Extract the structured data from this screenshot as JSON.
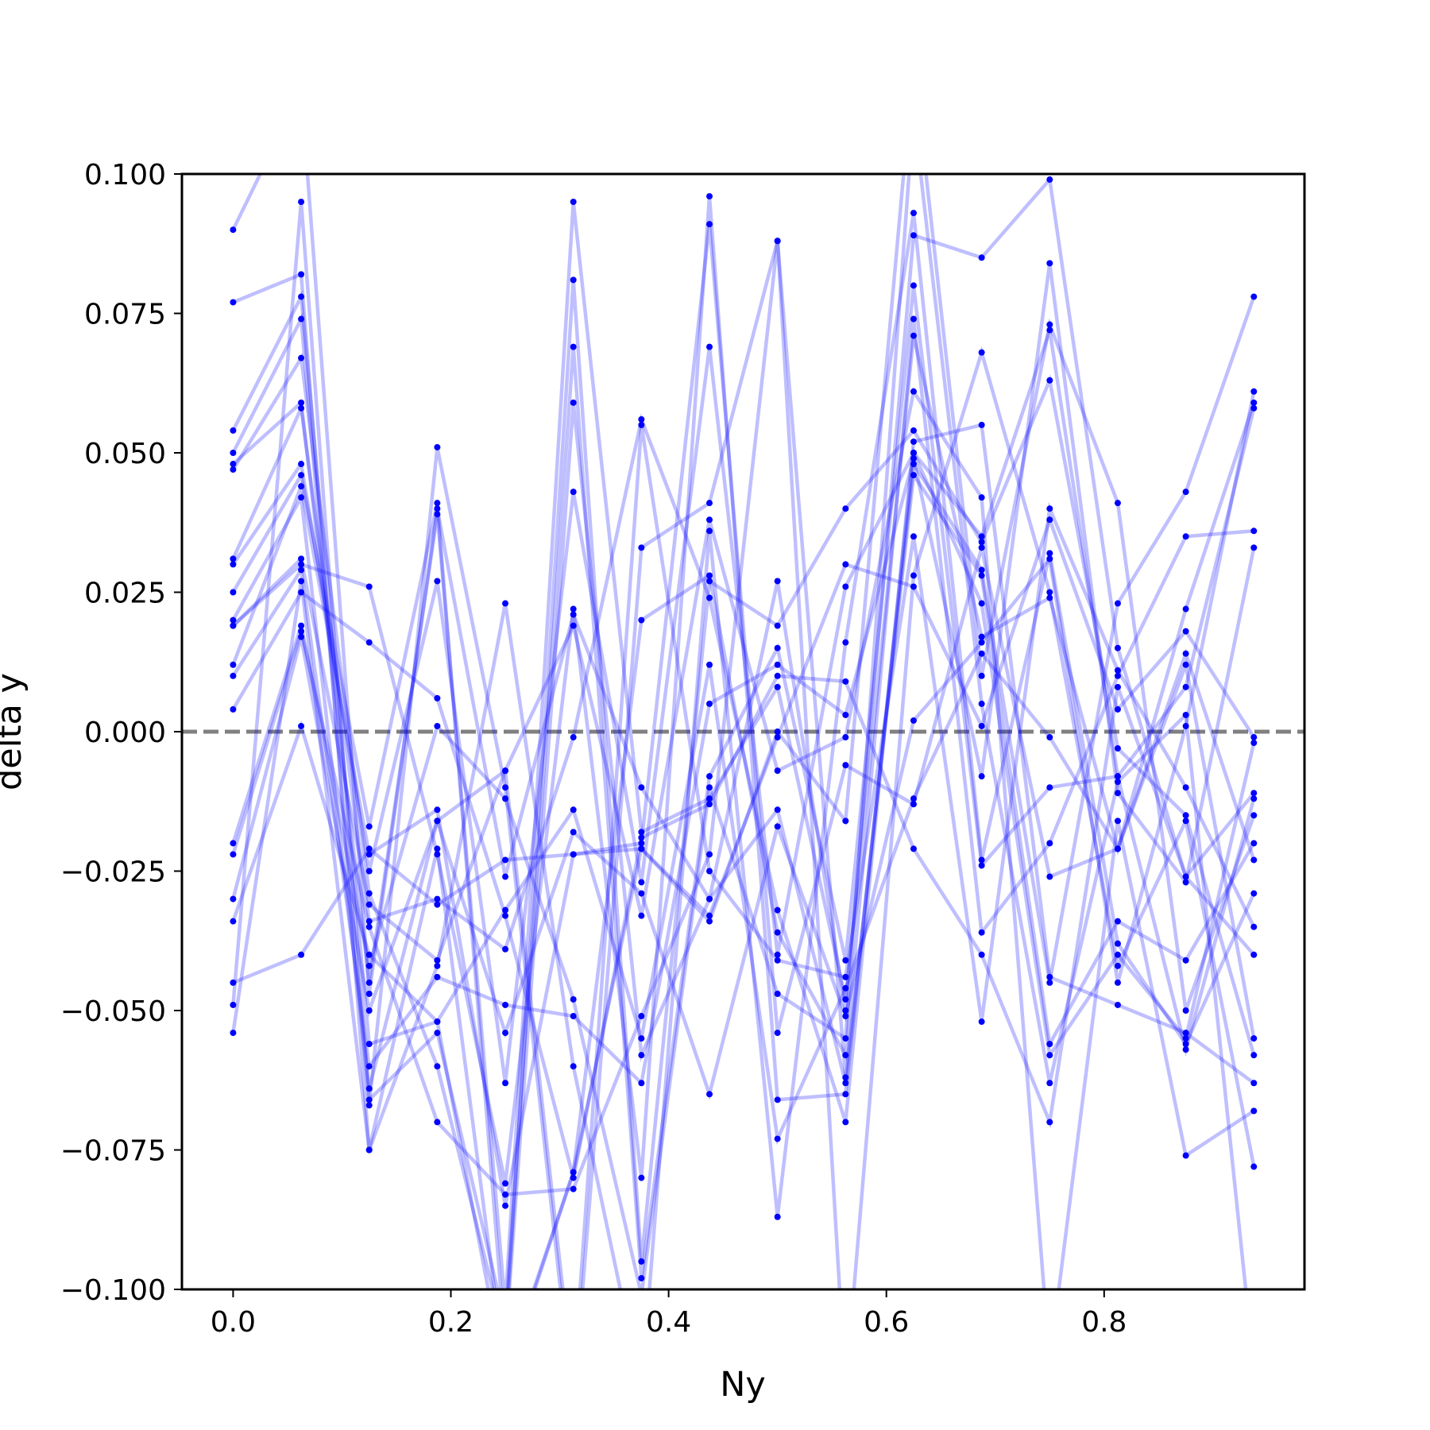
{
  "chart_data": {
    "type": "line",
    "title": "",
    "xlabel": "Ny",
    "ylabel": "delta y",
    "xlim": [
      -0.047,
      0.984
    ],
    "ylim": [
      -0.1,
      0.1
    ],
    "x": [
      0.0,
      0.0625,
      0.125,
      0.1875,
      0.25,
      0.3125,
      0.375,
      0.4375,
      0.5,
      0.5625,
      0.625,
      0.6875,
      0.75,
      0.8125,
      0.875,
      0.9375
    ],
    "xticks": [
      0.0,
      0.2,
      0.4,
      0.6,
      0.8
    ],
    "xtick_labels": [
      "0.0",
      "0.2",
      "0.4",
      "0.6",
      "0.8"
    ],
    "yticks": [
      0.1,
      0.075,
      0.05,
      0.025,
      0.0,
      -0.025,
      -0.05,
      -0.075,
      -0.1
    ],
    "ytick_labels": [
      "0.100",
      "0.075",
      "0.050",
      "0.025",
      "0.000",
      "−0.025",
      "−0.050",
      "−0.075",
      "−0.100"
    ],
    "reference_line": {
      "y": 0.0,
      "style": "dashed",
      "color": "#808080"
    },
    "grid": false,
    "line_color": "#0000ff",
    "series": [
      {
        "values": [
          0.09,
          0.115,
          -0.047,
          0.04,
          -0.026,
          0.021,
          -0.01,
          -0.03,
          0.027,
          -0.05,
          0.089,
          0.085,
          0.099,
          0.015,
          -0.026,
          -0.011
        ]
      },
      {
        "values": [
          0.077,
          0.082,
          -0.075,
          -0.042,
          0.023,
          -0.06,
          -0.118,
          0.036,
          -0.087,
          0.016,
          0.093,
          -0.023,
          0.032,
          -0.038,
          -0.056,
          -0.029
        ]
      },
      {
        "values": [
          0.054,
          0.078,
          -0.056,
          -0.052,
          -0.116,
          -0.079,
          0.02,
          0.028,
          -0.036,
          -0.058,
          0.074,
          -0.036,
          -0.02,
          0.01,
          0.035,
          0.036
        ]
      },
      {
        "values": [
          0.05,
          0.074,
          -0.067,
          0.051,
          -0.01,
          -0.121,
          0.033,
          0.041,
          0.088,
          -0.062,
          0.046,
          0.028,
          -0.056,
          -0.034,
          -0.041,
          -0.02
        ]
      },
      {
        "values": [
          0.047,
          0.067,
          -0.029,
          -0.06,
          -0.109,
          0.081,
          -0.095,
          0.027,
          0.019,
          0.04,
          0.054,
          0.034,
          0.063,
          -0.003,
          -0.015,
          -0.058
        ]
      },
      {
        "values": [
          0.048,
          0.059,
          -0.045,
          0.039,
          -0.103,
          0.095,
          -0.018,
          -0.012,
          0.008,
          -0.048,
          0.071,
          0.017,
          0.024,
          -0.021,
          0.022,
          0.059
        ]
      },
      {
        "values": [
          0.031,
          0.058,
          -0.034,
          -0.03,
          -0.039,
          -0.001,
          0.056,
          0.024,
          -0.032,
          -0.07,
          0.052,
          0.055,
          -0.044,
          -0.049,
          -0.054,
          -0.063
        ]
      },
      {
        "values": [
          0.03,
          0.048,
          -0.025,
          0.027,
          -0.063,
          0.043,
          -0.027,
          0.069,
          -0.04,
          0.026,
          0.05,
          0.035,
          0.072,
          -0.008,
          -0.057,
          -0.012
        ]
      },
      {
        "values": [
          0.025,
          0.046,
          -0.017,
          0.041,
          -0.11,
          0.059,
          -0.058,
          -0.03,
          -0.014,
          -0.063,
          0.048,
          0.029,
          -0.045,
          0.023,
          0.043,
          0.078
        ]
      },
      {
        "values": [
          0.02,
          0.042,
          -0.064,
          -0.016,
          -0.007,
          -0.117,
          0.055,
          -0.025,
          -0.041,
          -0.044,
          0.035,
          -0.052,
          0.04,
          0.011,
          -0.01,
          -0.035
        ]
      },
      {
        "values": [
          0.019,
          0.03,
          0.026,
          -0.022,
          -0.081,
          0.022,
          -0.08,
          0.096,
          -0.066,
          -0.065,
          0.05,
          0.023,
          -0.058,
          -0.04,
          -0.055,
          -0.002
        ]
      },
      {
        "values": [
          0.019,
          0.031,
          -0.031,
          -0.041,
          -0.007,
          0.019,
          -0.033,
          0.038,
          -0.007,
          -0.001,
          0.061,
          0.042,
          -0.113,
          -0.016,
          -0.076,
          -0.068
        ]
      },
      {
        "values": [
          0.012,
          0.044,
          -0.022,
          -0.014,
          -0.085,
          -0.022,
          -0.02,
          0.091,
          -0.054,
          -0.006,
          -0.013,
          0.033,
          -0.026,
          -0.021,
          0.014,
          -0.023
        ]
      },
      {
        "values": [
          0.01,
          0.029,
          -0.06,
          -0.044,
          -0.049,
          -0.051,
          -0.063,
          0.005,
          0.012,
          0.003,
          0.049,
          -0.008,
          0.084,
          -0.011,
          -0.027,
          0.033
        ]
      },
      {
        "values": [
          0.004,
          0.025,
          0.016,
          0.006,
          -0.033,
          -0.08,
          -0.019,
          -0.013,
          0.01,
          0.009,
          -0.021,
          -0.04,
          -0.07,
          0.008,
          -0.026,
          -0.04
        ]
      },
      {
        "values": [
          -0.02,
          0.019,
          -0.042,
          0.001,
          -0.012,
          -0.048,
          -0.101,
          -0.01,
          -0.047,
          -0.055,
          0.111,
          0.005,
          -0.063,
          -0.009,
          0.003,
          -0.114
        ]
      },
      {
        "values": [
          -0.022,
          0.018,
          -0.035,
          -0.07,
          -0.083,
          -0.082,
          -0.051,
          -0.022,
          0.088,
          -0.118,
          0.028,
          0.068,
          0.025,
          -0.042,
          -0.016,
          -0.078
        ]
      },
      {
        "values": [
          -0.03,
          0.017,
          -0.05,
          -0.016,
          -0.054,
          -0.018,
          -0.029,
          -0.065,
          -0.017,
          -0.051,
          0.002,
          0.016,
          0.031,
          -0.045,
          0.001,
          0.061
        ]
      },
      {
        "values": [
          -0.034,
          0.001,
          -0.04,
          -0.052,
          -0.032,
          -0.014,
          -0.055,
          0.012,
          -0.073,
          -0.046,
          -0.012,
          0.014,
          -0.001,
          -0.021,
          0.012,
          -0.055
        ]
      },
      {
        "values": [
          -0.045,
          -0.04,
          -0.021,
          -0.031,
          -0.023,
          -0.022,
          -0.021,
          -0.033,
          -0.001,
          0.03,
          0.026,
          0.001,
          0.038,
          0.004,
          0.018,
          -0.001
        ]
      },
      {
        "values": [
          -0.049,
          0.095,
          -0.066,
          -0.054,
          -0.106,
          0.069,
          -0.098,
          -0.008,
          0.015,
          -0.041,
          0.08,
          -0.024,
          -0.01,
          -0.008,
          0.008,
          0.058
        ]
      },
      {
        "values": [
          -0.054,
          0.027,
          -0.075,
          -0.021,
          -0.115,
          -0.079,
          -0.021,
          -0.034,
          0.0,
          -0.016,
          0.12,
          0.01,
          0.073,
          0.041,
          -0.05,
          -0.015
        ]
      }
    ]
  }
}
